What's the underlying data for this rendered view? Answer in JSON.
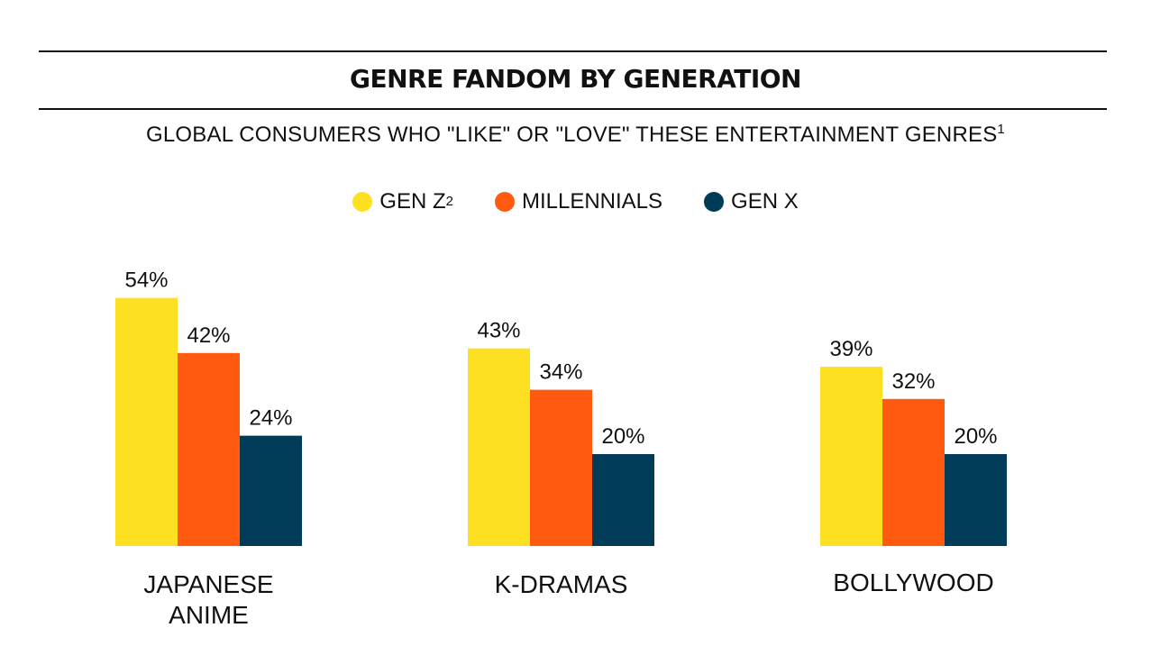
{
  "header": {
    "title": "GENRE FANDOM BY GENERATION",
    "subtitle": "GLOBAL CONSUMERS WHO \"LIKE\" OR \"LOVE\" THESE ENTERTAINMENT GENRES",
    "subtitle_footnote": "1"
  },
  "legend": [
    {
      "name": "GEN Z",
      "footnote": "2",
      "color": "#FDE021"
    },
    {
      "name": "MILLENNIALS",
      "footnote": "",
      "color": "#FF5A10"
    },
    {
      "name": "GEN X",
      "footnote": "",
      "color": "#003B57"
    }
  ],
  "chart_data": {
    "type": "bar",
    "categories": [
      "JAPANESE ANIME",
      "K-DRAMAS",
      "BOLLYWOOD"
    ],
    "category_lines": [
      [
        "JAPANESE",
        "ANIME"
      ],
      [
        "K-DRAMAS"
      ],
      [
        "BOLLYWOOD"
      ]
    ],
    "series": [
      {
        "name": "GEN Z",
        "color": "#FDE021",
        "values": [
          54,
          43,
          39
        ],
        "labels": [
          "54%",
          "43%",
          "39%"
        ]
      },
      {
        "name": "MILLENNIALS",
        "color": "#FF5A10",
        "values": [
          42,
          34,
          32
        ],
        "labels": [
          "42%",
          "34%",
          "32%"
        ]
      },
      {
        "name": "GEN X",
        "color": "#003B57",
        "values": [
          24,
          20,
          20
        ],
        "labels": [
          "24%",
          "20%",
          "20%"
        ]
      }
    ],
    "unit": "%",
    "ylim": [
      0,
      60
    ],
    "grid": false,
    "legend_position": "top-center"
  }
}
